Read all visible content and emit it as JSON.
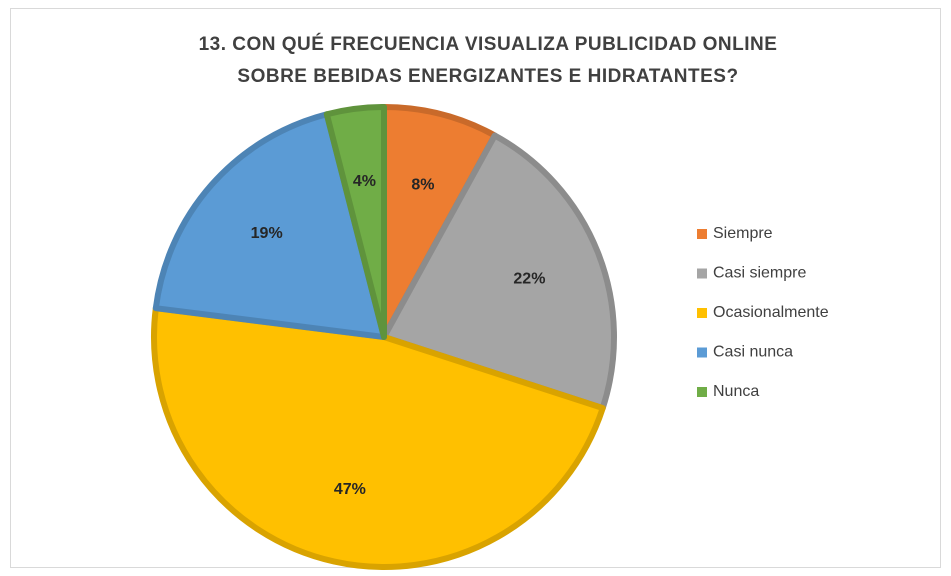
{
  "chart_data": {
    "type": "pie",
    "title": [
      "13.  CON QUÉ FRECUENCIA VISUALIZA PUBLICIDAD ONLINE",
      "SOBRE BEBIDAS ENERGIZANTES E HIDRATANTES?"
    ],
    "categories": [
      "Siempre",
      "Casi siempre",
      "Ocasionalmente",
      "Casi nunca",
      "Nunca"
    ],
    "values": [
      8,
      22,
      47,
      19,
      4
    ],
    "value_labels": [
      "8%",
      "22%",
      "47%",
      "19%",
      "4%"
    ],
    "colors": [
      "#ED7D31",
      "#A5A5A5",
      "#FFC000",
      "#5B9BD5",
      "#70AD47"
    ],
    "legend": "right"
  }
}
